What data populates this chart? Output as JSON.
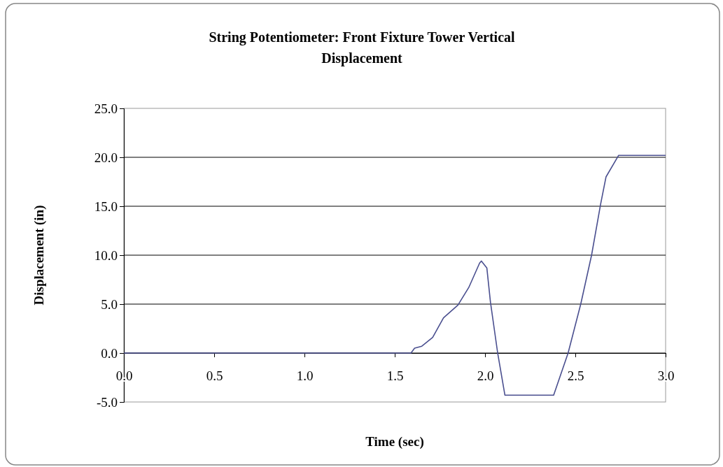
{
  "chart_data": {
    "type": "line",
    "title": "String Potentiometer: Front Fixture Tower Vertical Displacement",
    "xlabel": "Time (sec)",
    "ylabel": "Displacement (in)",
    "xlim": [
      0,
      3
    ],
    "xticks": [
      {
        "value": 0,
        "label": "0.0"
      },
      {
        "value": 0.5,
        "label": "0.5"
      },
      {
        "value": 1,
        "label": "1.0"
      },
      {
        "value": 1.5,
        "label": "1.5"
      },
      {
        "value": 2,
        "label": "2.0"
      },
      {
        "value": 2.5,
        "label": "2.5"
      },
      {
        "value": 3,
        "label": "3.0"
      }
    ],
    "ylim": [
      -5,
      25
    ],
    "yticks": [
      {
        "value": -5,
        "label": "-5.0"
      },
      {
        "value": 0,
        "label": "0.0"
      },
      {
        "value": 5,
        "label": "5.0"
      },
      {
        "value": 10,
        "label": "10.0"
      },
      {
        "value": 15,
        "label": "15.0"
      },
      {
        "value": 20,
        "label": "20.0"
      },
      {
        "value": 25,
        "label": "25.0"
      }
    ],
    "grid": "y",
    "marker": "none",
    "line_style": "solid",
    "series": [
      {
        "color": "#4a4f8f",
        "x": [
          0,
          1.59,
          1.61,
          1.65,
          1.71,
          1.77,
          1.85,
          1.91,
          1.97,
          1.98,
          2.01,
          2.03,
          2.07,
          2.11,
          2.38,
          2.46,
          2.53,
          2.59,
          2.64,
          2.67,
          2.74,
          3.0
        ],
        "values": [
          0,
          0,
          0.5,
          0.7,
          1.6,
          3.6,
          4.9,
          6.7,
          9.2,
          9.4,
          8.7,
          5.2,
          0,
          -4.3,
          -4.3,
          0,
          5,
          10,
          15.2,
          18,
          20.2,
          20.2
        ]
      }
    ]
  }
}
